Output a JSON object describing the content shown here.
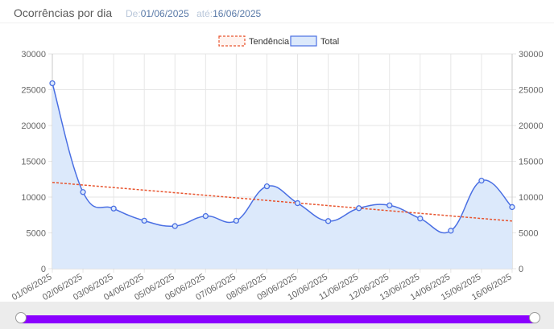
{
  "header": {
    "title": "Ocorrências por dia",
    "from_label": "De:",
    "from_value": "01/06/2025",
    "to_label": "até:",
    "to_value": "16/06/2025"
  },
  "chart_data": {
    "type": "line",
    "categories": [
      "01/06/2025",
      "02/06/2025",
      "03/06/2025",
      "04/06/2025",
      "05/06/2025",
      "06/06/2025",
      "07/06/2025",
      "08/06/2025",
      "09/06/2025",
      "10/06/2025",
      "11/06/2025",
      "12/06/2025",
      "13/06/2025",
      "14/06/2025",
      "15/06/2025",
      "16/06/2025"
    ],
    "series": [
      {
        "name": "Tendência",
        "style": "dashed",
        "color": "#e8542e",
        "values": [
          12050,
          11690,
          11330,
          10970,
          10610,
          10250,
          9890,
          9530,
          9170,
          8810,
          8450,
          8090,
          7730,
          7370,
          7010,
          6650
        ]
      },
      {
        "name": "Total",
        "style": "area",
        "color": "#4a6fe3",
        "fill": "#dce9fb",
        "values": [
          25900,
          10700,
          8400,
          6700,
          5950,
          7350,
          6700,
          11500,
          9150,
          6650,
          8450,
          8850,
          7000,
          5300,
          12300,
          8600
        ]
      }
    ],
    "ylim": [
      0,
      30000
    ],
    "yticks": [
      0,
      5000,
      10000,
      15000,
      20000,
      25000,
      30000
    ],
    "legend": "top-center",
    "grid": true,
    "dual_y_axis": true
  },
  "range_slider": {
    "start": 0,
    "end": 1
  }
}
